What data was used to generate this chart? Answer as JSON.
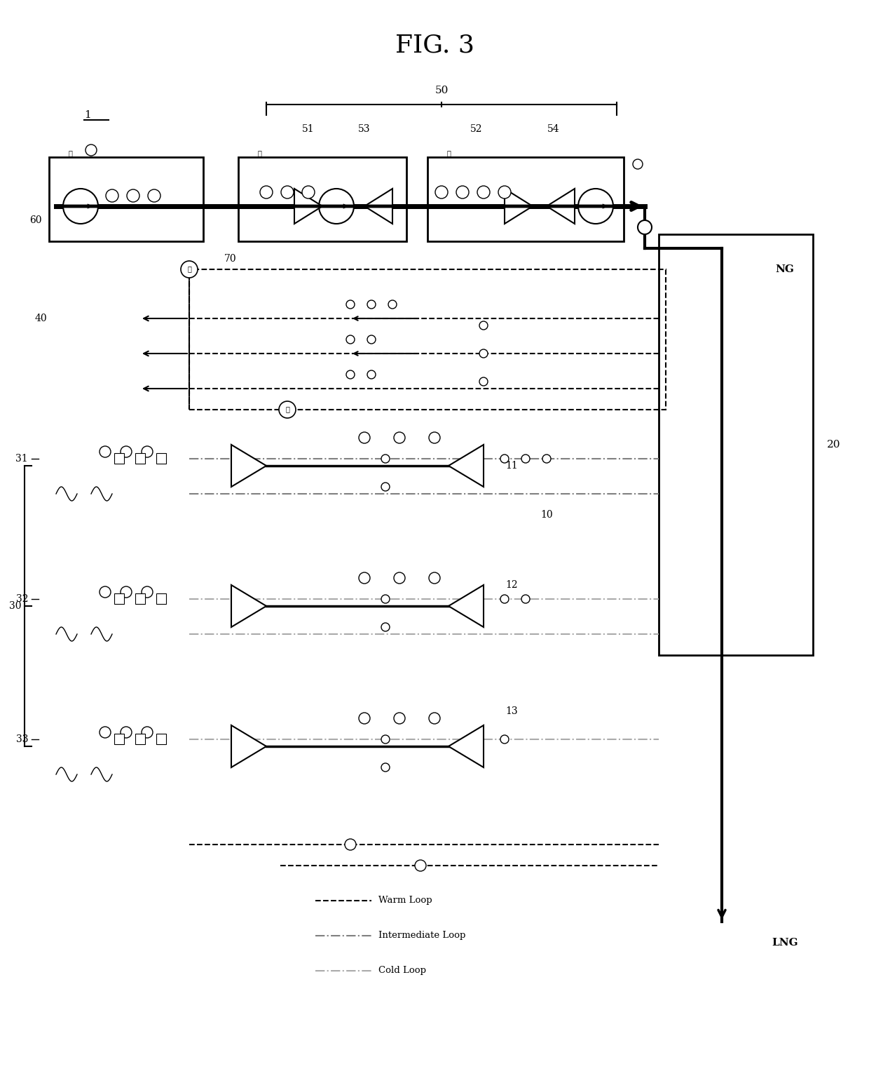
{
  "title": "FIG. 3",
  "title_fontsize": 28,
  "bg_color": "#ffffff",
  "line_color": "#000000",
  "warm_loop_color": "#000000",
  "intermediate_loop_color": "#808080",
  "cold_loop_color": "#a0a0a0",
  "legend_items": [
    {
      "label": "Warm Loop",
      "style": "dashed",
      "color": "#000000"
    },
    {
      "label": "Intermediate Loop",
      "style": "dashdot",
      "color": "#808080"
    },
    {
      "label": "Cold Loop",
      "style": "dashdot",
      "color": "#a0a0a0"
    }
  ],
  "labels": {
    "fig_title": "FIG. 3",
    "label_1": "1",
    "label_50": "50",
    "label_51": "51",
    "label_52": "52",
    "label_53": "53",
    "label_54": "54",
    "label_60": "60",
    "label_70": "70",
    "label_40": "40",
    "label_30": "30",
    "label_31": "31",
    "label_32": "32",
    "label_33": "33",
    "label_10": "10",
    "label_11": "11",
    "label_12": "12",
    "label_13": "13",
    "label_20": "20",
    "label_NG": "NG",
    "label_LNG": "LNG"
  }
}
